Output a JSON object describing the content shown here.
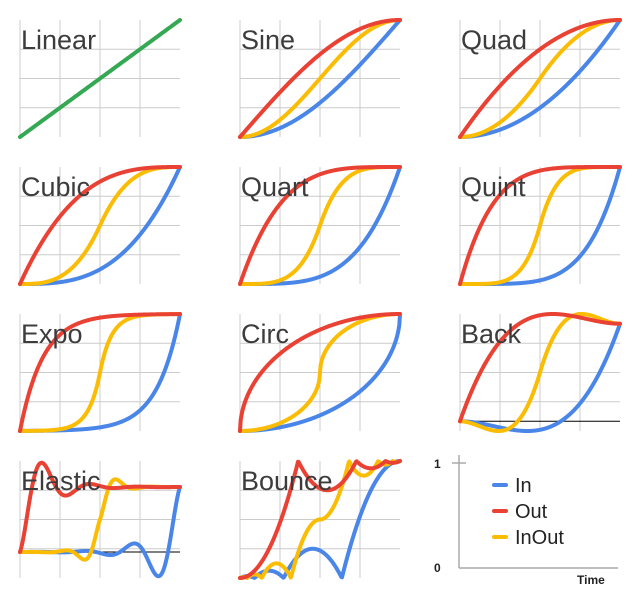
{
  "chart_data": {
    "type": "line",
    "x_range": [
      0,
      1
    ],
    "grid": true,
    "colors": {
      "In": "#4a86e8",
      "Out": "#e94235",
      "InOut": "#fbbc04",
      "Linear": "#34a853",
      "grid": "#cccccc",
      "baseline": "#000000"
    },
    "panels": [
      {
        "title": "Linear",
        "ylim": [
          0,
          1
        ],
        "series": [
          {
            "name": "Linear",
            "fn": "linear"
          }
        ]
      },
      {
        "title": "Sine",
        "ylim": [
          0,
          1
        ],
        "series": [
          {
            "name": "In",
            "fn": "sineIn"
          },
          {
            "name": "Out",
            "fn": "sineOut"
          },
          {
            "name": "InOut",
            "fn": "sineInOut"
          }
        ]
      },
      {
        "title": "Quad",
        "ylim": [
          0,
          1
        ],
        "series": [
          {
            "name": "In",
            "fn": "quadIn"
          },
          {
            "name": "Out",
            "fn": "quadOut"
          },
          {
            "name": "InOut",
            "fn": "quadInOut"
          }
        ]
      },
      {
        "title": "Cubic",
        "ylim": [
          0,
          1
        ],
        "series": [
          {
            "name": "In",
            "fn": "cubicIn"
          },
          {
            "name": "Out",
            "fn": "cubicOut"
          },
          {
            "name": "InOut",
            "fn": "cubicInOut"
          }
        ]
      },
      {
        "title": "Quart",
        "ylim": [
          0,
          1
        ],
        "series": [
          {
            "name": "In",
            "fn": "quartIn"
          },
          {
            "name": "Out",
            "fn": "quartOut"
          },
          {
            "name": "InOut",
            "fn": "quartInOut"
          }
        ]
      },
      {
        "title": "Quint",
        "ylim": [
          0,
          1
        ],
        "series": [
          {
            "name": "In",
            "fn": "quintIn"
          },
          {
            "name": "Out",
            "fn": "quintOut"
          },
          {
            "name": "InOut",
            "fn": "quintInOut"
          }
        ]
      },
      {
        "title": "Expo",
        "ylim": [
          0,
          1
        ],
        "series": [
          {
            "name": "In",
            "fn": "expoIn"
          },
          {
            "name": "Out",
            "fn": "expoOut"
          },
          {
            "name": "InOut",
            "fn": "expoInOut"
          }
        ]
      },
      {
        "title": "Circ",
        "ylim": [
          0,
          1
        ],
        "series": [
          {
            "name": "In",
            "fn": "circIn"
          },
          {
            "name": "Out",
            "fn": "circOut"
          },
          {
            "name": "InOut",
            "fn": "circInOut"
          }
        ]
      },
      {
        "title": "Back",
        "ylim": [
          -0.1,
          1.1
        ],
        "baseline": 0,
        "series": [
          {
            "name": "In",
            "fn": "backIn"
          },
          {
            "name": "Out",
            "fn": "backOut"
          },
          {
            "name": "InOut",
            "fn": "backInOut"
          }
        ]
      },
      {
        "title": "Elastic",
        "ylim": [
          -0.4,
          1.4
        ],
        "baseline": 0,
        "series": [
          {
            "name": "In",
            "fn": "elasticIn"
          },
          {
            "name": "Out",
            "fn": "elasticOut"
          },
          {
            "name": "InOut",
            "fn": "elasticInOut"
          }
        ]
      },
      {
        "title": "Bounce",
        "ylim": [
          0,
          1
        ],
        "series": [
          {
            "name": "In",
            "fn": "bounceIn"
          },
          {
            "name": "Out",
            "fn": "bounceOut"
          },
          {
            "name": "InOut",
            "fn": "bounceInOut"
          }
        ]
      }
    ],
    "legend": {
      "entries": [
        "In",
        "Out",
        "InOut"
      ],
      "x_label": "Time",
      "y_ticks": [
        "1",
        "0"
      ]
    }
  }
}
